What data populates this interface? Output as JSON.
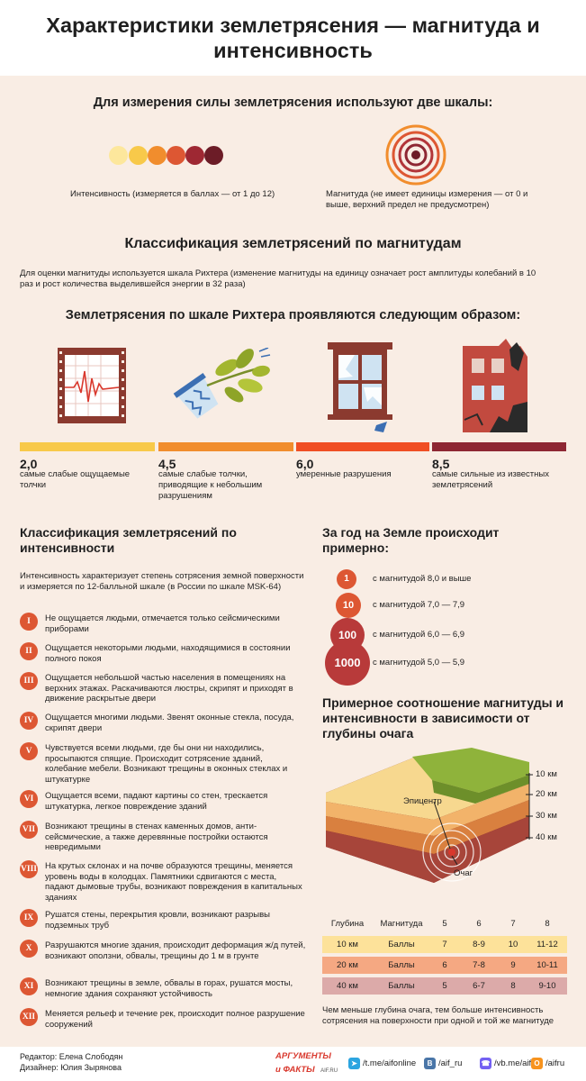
{
  "title": "Характеристики землетрясения — магнитуда и интенсивность",
  "scales_heading": "Для измерения силы землетрясения используют две шкалы:",
  "intensity_caption": "Интенсивность (измеряется в баллах — от 1 до 12)",
  "intensity_colors": [
    "#fde79c",
    "#f8c94a",
    "#f18d2d",
    "#dd5733",
    "#9e2833",
    "#6c1c27"
  ],
  "magnitude_caption": "Магнитуда (не имеет единицы измерения — от 0 и выше, верхний предел не предусмотрен)",
  "classification_magnitude": {
    "heading": "Классификация землетрясений по магнитудам",
    "text": "Для оценки магнитуды используется шкала Рихтера (изменение магнитуды на единицу означает рост амплитуды колебаний в 10 раз и рост количества выделившейся энергии в 32 раза)"
  },
  "richter_heading": "Землетрясения по шкале Рихтера проявляются следующим образом:",
  "richter_levels": [
    {
      "value": "2,0",
      "text": "самые слабые ощущаемые толчки",
      "color": "#f8c94a"
    },
    {
      "value": "4,5",
      "text": "самые слабые толчки, приводящие к небольшим разрушениям",
      "color": "#f18d2d"
    },
    {
      "value": "6,0",
      "text": "умеренные разрушения",
      "color": "#f04e23"
    },
    {
      "value": "8,5",
      "text": "самые сильные из известных землетрясений",
      "color": "#8e2733"
    }
  ],
  "classification_intensity": {
    "heading": "Классификация землетрясений по интенсивности",
    "text": "Интенсивность характеризует степень сотрясения земной поверхности и измеряется по 12-балльной шкале (в России по шкале MSK-64)"
  },
  "intensity_levels": [
    {
      "roman": "I",
      "text": "Не ощущается людьми, отмечается только сейсмическими приборами"
    },
    {
      "roman": "II",
      "text": "Ощущается некоторыми людьми, находящимися в состоянии полного покоя"
    },
    {
      "roman": "III",
      "text": "Ощущается небольшой частью населения в помещениях на верхних этажах. Раскачиваются люстры, скрипят и приходят в движение раскрытые двери"
    },
    {
      "roman": "IV",
      "text": "Ощущается многими людьми. Звенят оконные стекла, посуда, скрипят двери"
    },
    {
      "roman": "V",
      "text": "Чувствуется всеми людьми, где бы они ни находились, просыпаются спящие. Происходит сотрясение зданий, колебание мебели. Возникают трещины в оконных стеклах и штукатурке"
    },
    {
      "roman": "VI",
      "text": "Ощущается всеми, падают картины со стен, трескается штукатурка, легкое повреждение зданий"
    },
    {
      "roman": "VII",
      "text": "Возникают трещины в стенах каменных домов, анти-сейсмические, а также деревянные постройки остаются невредимыми"
    },
    {
      "roman": "VIII",
      "text": "На крутых склонах и на почве образуются трещины, меняется уровень воды в колодцах. Памятники сдвигаются с места, падают дымовые трубы, возникают повреждения в капитальных зданиях"
    },
    {
      "roman": "IX",
      "text": "Рушатся стены, перекрытия кровли, возникают разрывы подземных труб"
    },
    {
      "roman": "X",
      "text": "Разрушаются многие здания, происходит деформация ж/д путей, возникают оползни, обвалы, трещины до 1 м в грунте"
    },
    {
      "roman": "XI",
      "text": "Возникают трещины в земле, обвалы в горах, рушатся мосты, немногие здания сохраняют устойчивость"
    },
    {
      "roman": "XII",
      "text": "Меняется рельеф и течение рек, происходит полное разрушение сооружений"
    }
  ],
  "frequency": {
    "heading": "За год на Земле происходит примерно:",
    "items": [
      {
        "count": "1",
        "text": "с магнитудой 8,0 и выше"
      },
      {
        "count": "10",
        "text": "с магнитудой 7,0 — 7,9"
      },
      {
        "count": "100",
        "text": "с магнитудой 6,0 — 6,9"
      },
      {
        "count": "1000",
        "text": "с магнитудой 5,0 — 5,9"
      }
    ]
  },
  "depth_section": {
    "heading": "Примерное соотношение магнитуды и интенсивности в зависимости от глубины очага",
    "depth_marks": [
      "10 км",
      "20 км",
      "30 км",
      "40 км"
    ],
    "epicenter_label": "Эпицентр",
    "focus_label": "Очаг",
    "table": {
      "headers": [
        "Глубина",
        "Магнитуда",
        "5",
        "6",
        "7",
        "8"
      ],
      "rows": [
        {
          "depth": "10 км",
          "unit": "Баллы",
          "values": [
            "7",
            "8-9",
            "10",
            "11-12"
          ],
          "color": "#fde29a"
        },
        {
          "depth": "20 км",
          "unit": "Баллы",
          "values": [
            "6",
            "7-8",
            "9",
            "10-11"
          ],
          "color": "#f5a882"
        },
        {
          "depth": "40 км",
          "unit": "Баллы",
          "values": [
            "5",
            "6-7",
            "8",
            "9-10"
          ],
          "color": "#dcaaa9"
        }
      ]
    },
    "note": "Чем меньше глубина очага, тем больше интенсивность сотрясения на поверхности при одной и той же магнитуде"
  },
  "footer": {
    "editor": "Редактор: Елена Слободян",
    "designer": "Дизайнер: Юлия Зырянова",
    "logo_line1": "АРГУМЕНТЫ",
    "logo_line2": "и ФАКТЫ",
    "logo_site": "AIF.RU",
    "socials": [
      {
        "label": "/t.me/aifonline",
        "icon": "telegram-icon",
        "color": "#2ca5e0"
      },
      {
        "label": "/aif_ru",
        "icon": "vk-icon",
        "color": "#4a76a8"
      },
      {
        "label": "/vb.me/aif",
        "icon": "viber-icon",
        "color": "#7360f2"
      },
      {
        "label": "/aifru",
        "icon": "odnoklassniki-icon",
        "color": "#f7931e"
      }
    ]
  }
}
